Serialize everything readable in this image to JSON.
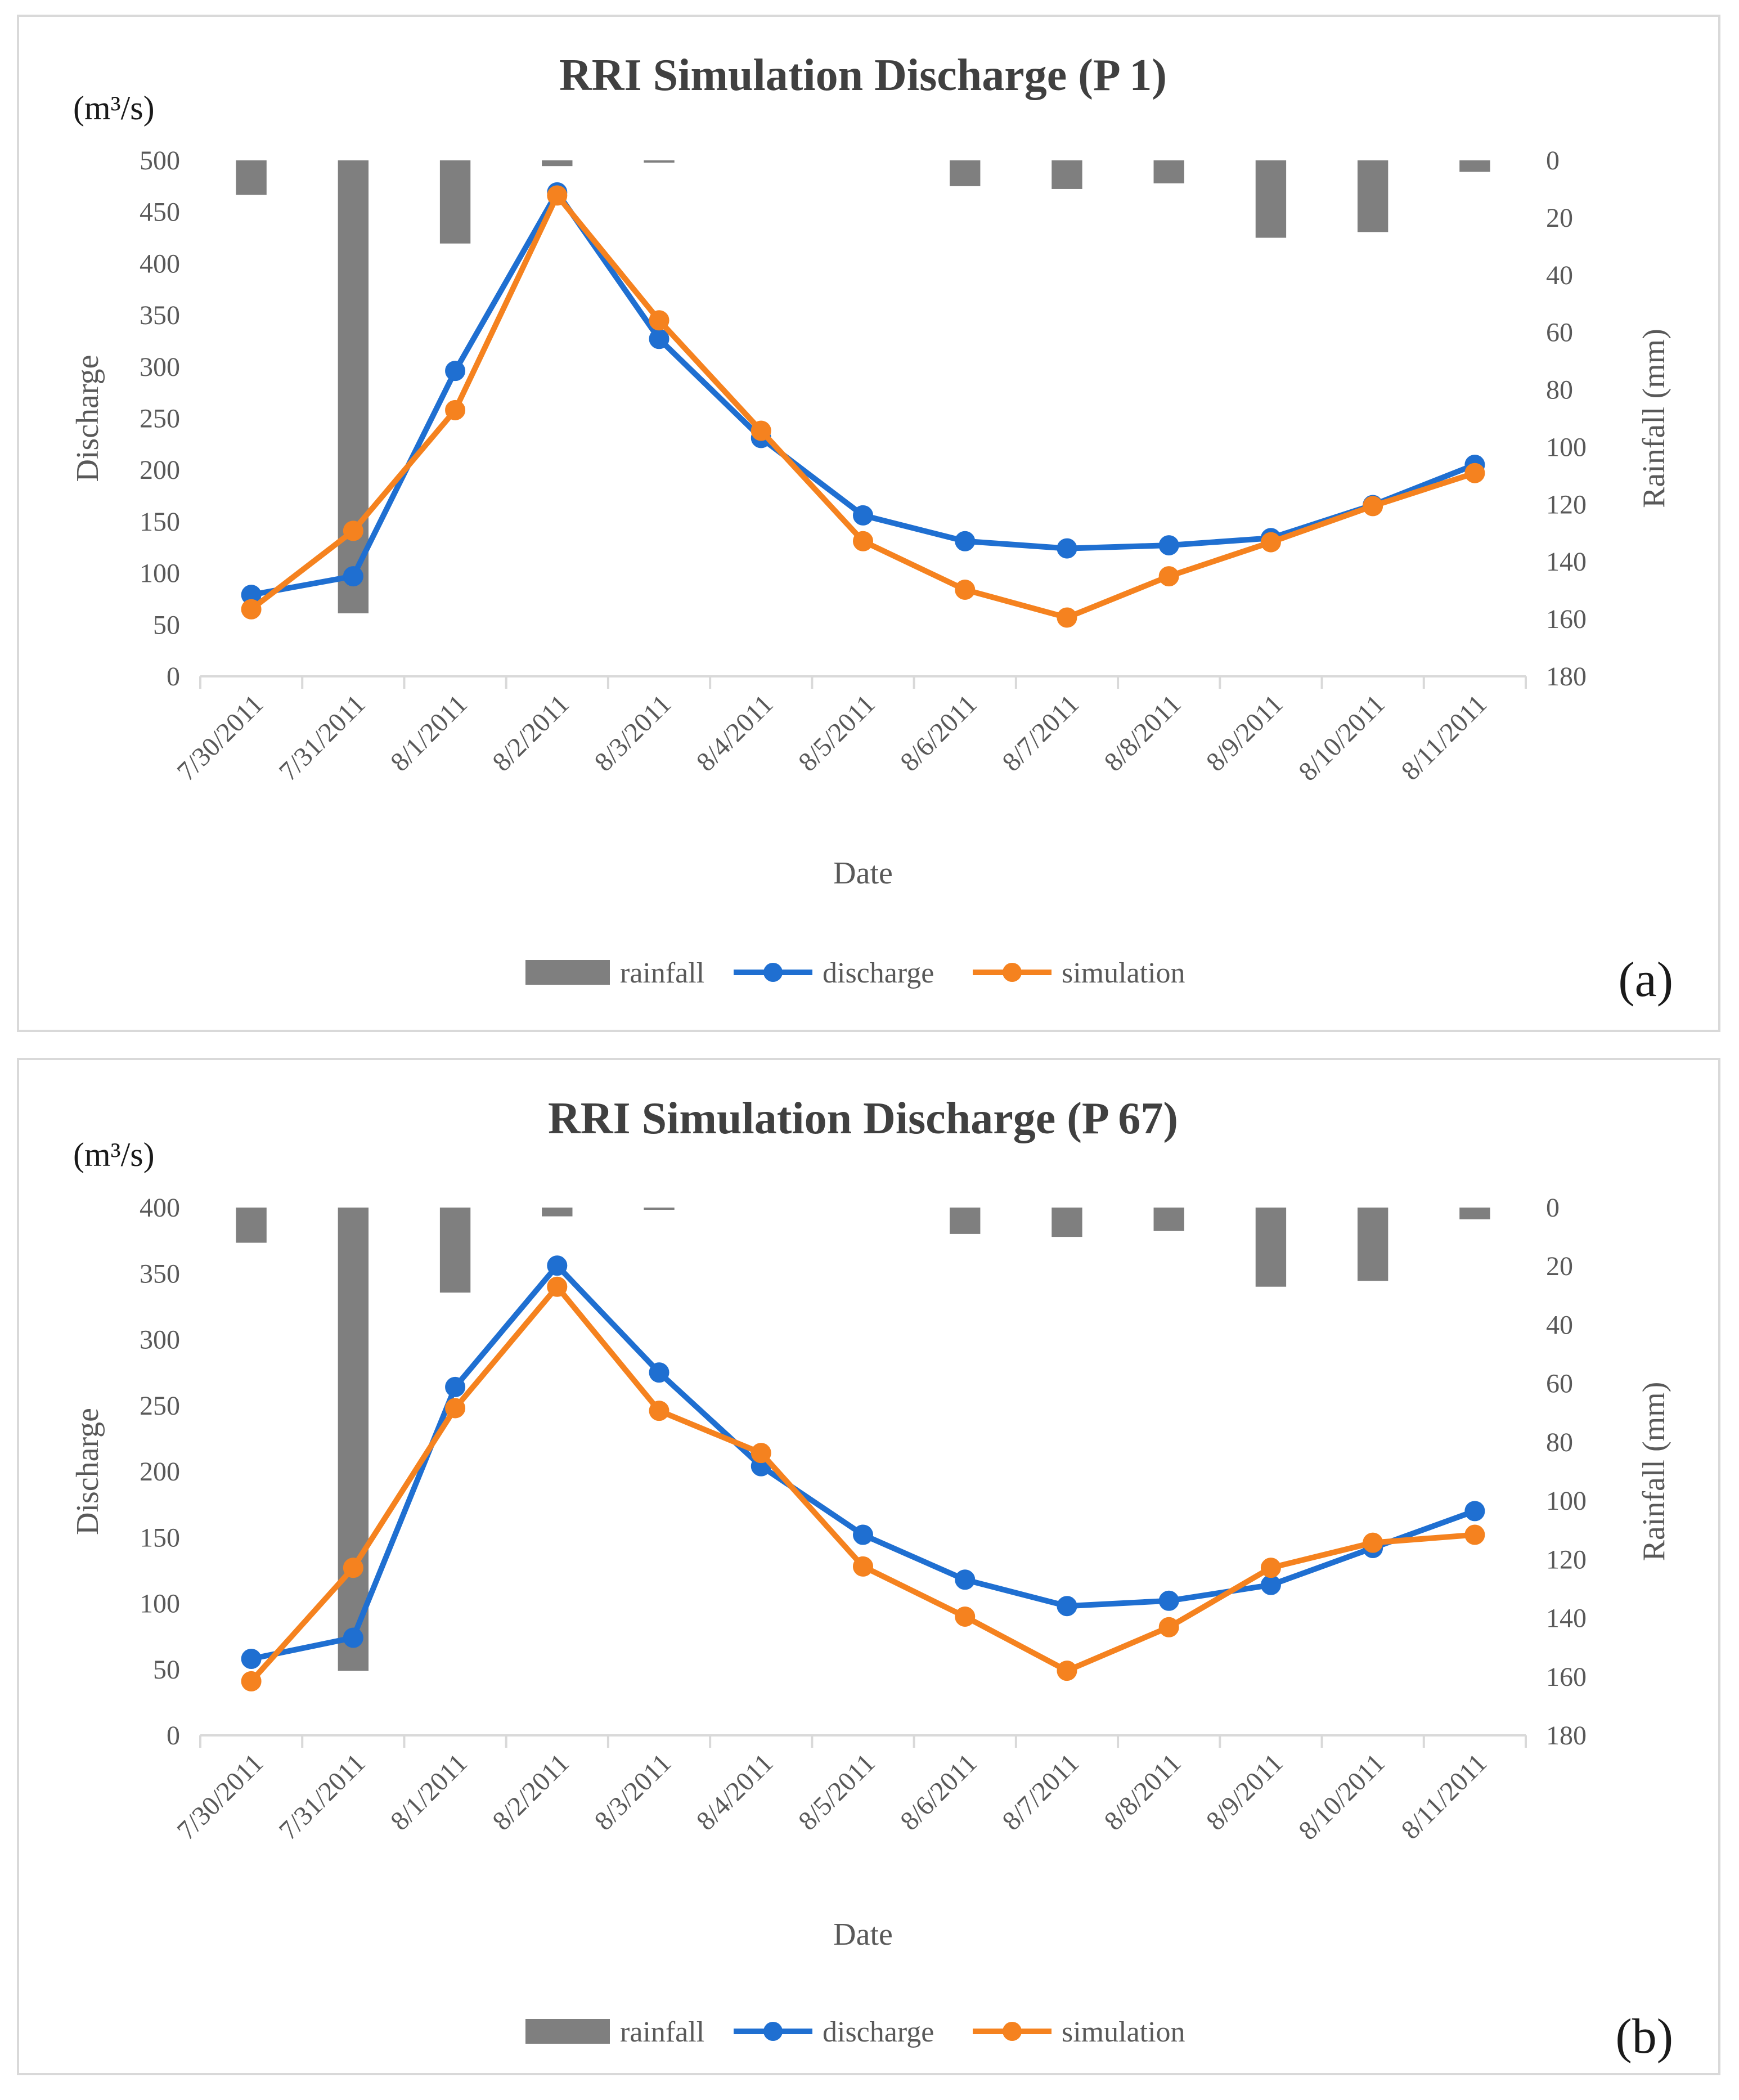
{
  "colors": {
    "rainfall": "#7f7f7f",
    "discharge": "#1f6fd1",
    "simulation": "#f5821f",
    "axis": "#d9d9d9",
    "text": "#595959"
  },
  "legend": {
    "rainfall": "rainfall",
    "discharge": "discharge",
    "simulation": "simulation"
  },
  "chart_data": [
    {
      "type": "bar+line",
      "panel_label": "(a)",
      "title": "RRI Simulation Discharge (P 1)",
      "unit_label": "(m³/s)",
      "xlabel": "Date",
      "ylabel": "Discharge",
      "y2label": "Rainfall (mm)",
      "categories": [
        "7/30/2011",
        "7/31/2011",
        "8/1/2011",
        "8/2/2011",
        "8/3/2011",
        "8/4/2011",
        "8/5/2011",
        "8/6/2011",
        "8/7/2011",
        "8/8/2011",
        "8/9/2011",
        "8/10/2011",
        "8/11/2011"
      ],
      "ylim": [
        0,
        500
      ],
      "yticks": [
        0,
        50,
        100,
        150,
        200,
        250,
        300,
        350,
        400,
        450,
        500
      ],
      "y2lim": [
        0,
        180
      ],
      "y2ticks": [
        0,
        20,
        40,
        60,
        80,
        100,
        120,
        140,
        160,
        180
      ],
      "y2_inverted": true,
      "rainfall": [
        12,
        158,
        29,
        2,
        0.5,
        0,
        0,
        9,
        10,
        8,
        27,
        25,
        4
      ],
      "series": [
        {
          "name": "discharge",
          "values": [
            79,
            97,
            296,
            469,
            327,
            231,
            156,
            131,
            124,
            127,
            134,
            166,
            205
          ]
        },
        {
          "name": "simulation",
          "values": [
            65,
            141,
            258,
            466,
            345,
            238,
            131,
            84,
            57,
            97,
            130,
            165,
            197
          ]
        }
      ]
    },
    {
      "type": "bar+line",
      "panel_label": "(b)",
      "title": "RRI Simulation Discharge (P 67)",
      "unit_label": "(m³/s)",
      "xlabel": "Date",
      "ylabel": "Discharge",
      "y2label": "Rainfall (mm)",
      "categories": [
        "7/30/2011",
        "7/31/2011",
        "8/1/2011",
        "8/2/2011",
        "8/3/2011",
        "8/4/2011",
        "8/5/2011",
        "8/6/2011",
        "8/7/2011",
        "8/8/2011",
        "8/9/2011",
        "8/10/2011",
        "8/11/2011"
      ],
      "ylim": [
        0,
        400
      ],
      "yticks": [
        0,
        50,
        100,
        150,
        200,
        250,
        300,
        350,
        400
      ],
      "y2lim": [
        0,
        180
      ],
      "y2ticks": [
        0,
        20,
        40,
        60,
        80,
        100,
        120,
        140,
        160,
        180
      ],
      "y2_inverted": true,
      "rainfall": [
        12,
        158,
        29,
        3,
        0.5,
        0,
        0,
        9,
        10,
        8,
        27,
        25,
        4
      ],
      "series": [
        {
          "name": "discharge",
          "values": [
            58,
            74,
            264,
            356,
            275,
            204,
            152,
            118,
            98,
            102,
            114,
            142,
            170
          ]
        },
        {
          "name": "simulation",
          "values": [
            41,
            127,
            248,
            340,
            246,
            214,
            128,
            90,
            49,
            82,
            127,
            146,
            152
          ]
        }
      ]
    }
  ]
}
